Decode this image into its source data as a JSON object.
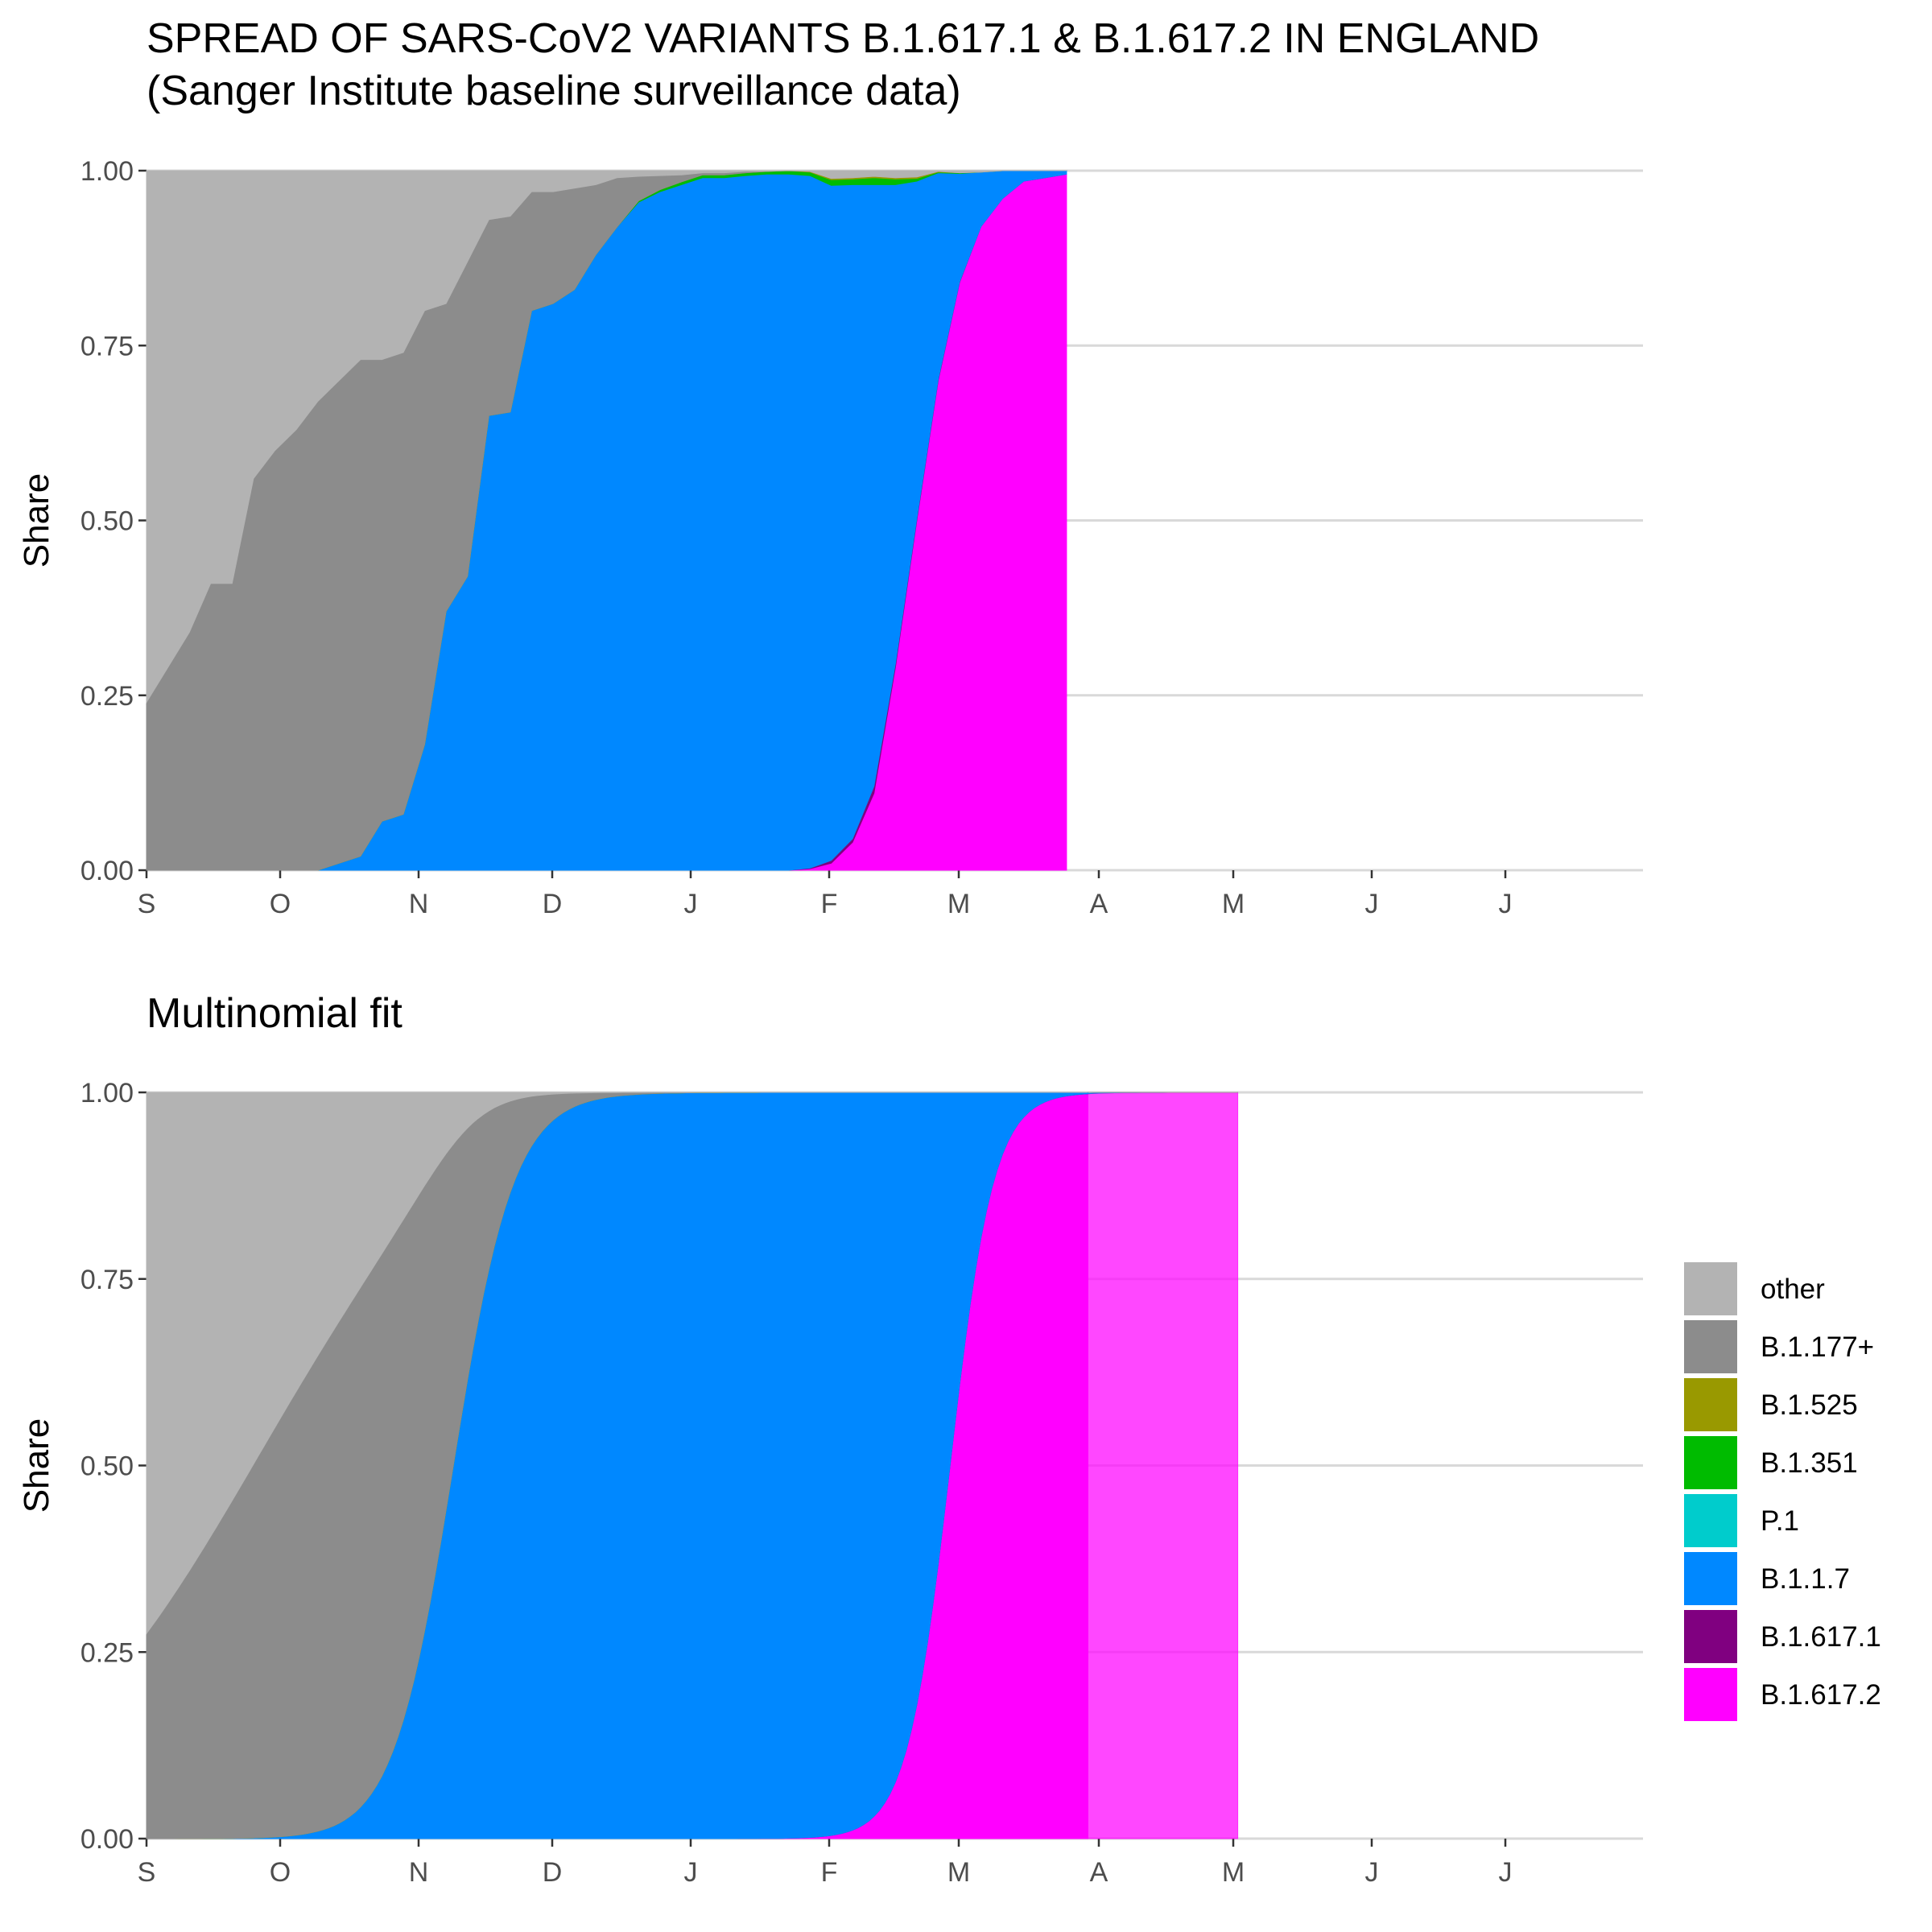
{
  "title_line1": "SPREAD OF SARS-CoV2 VARIANTS B.1.617.1 & B.1.617.2 IN ENGLAND",
  "title_line2": "(Sanger Institute baseline surveillance data)",
  "chart_data": [
    {
      "type": "area",
      "stacked": "fill",
      "subtitle": "",
      "ylabel": "Share",
      "ylim": [
        0,
        1
      ],
      "yticks": [
        "0.00",
        "0.25",
        "0.50",
        "0.75",
        "1.00"
      ],
      "month_ticks": [
        "S",
        "O",
        "N",
        "D",
        "J",
        "F",
        "M",
        "A",
        "M",
        "J",
        "J"
      ],
      "grid": "horizontal",
      "week_index": [
        0,
        1,
        2,
        3,
        4,
        5,
        6,
        7,
        8,
        9,
        10,
        11,
        12,
        13,
        14,
        15,
        16,
        17,
        18,
        19,
        20,
        21,
        22,
        23,
        24,
        25,
        26,
        27,
        28,
        29,
        30,
        31,
        32,
        33,
        34,
        35,
        36,
        37,
        38,
        39,
        40,
        41,
        42,
        43
      ],
      "series": [
        {
          "name": "B.1.617.2",
          "values": [
            0,
            0,
            0,
            0,
            0,
            0,
            0,
            0,
            0,
            0,
            0,
            0,
            0,
            0,
            0,
            0,
            0,
            0,
            0,
            0,
            0,
            0,
            0,
            0,
            0,
            0,
            0,
            0,
            0,
            0,
            0,
            0.002,
            0.01,
            0.04,
            0.11,
            0.29,
            0.5,
            0.7,
            0.84,
            0.92,
            0.96,
            0.985,
            0.99,
            0.995
          ]
        },
        {
          "name": "B.1.617.1",
          "values": [
            0,
            0,
            0,
            0,
            0,
            0,
            0,
            0,
            0,
            0,
            0,
            0,
            0,
            0,
            0,
            0,
            0,
            0,
            0,
            0,
            0,
            0,
            0,
            0,
            0,
            0,
            0,
            0,
            0,
            0,
            0,
            0.001,
            0.004,
            0.005,
            0.01,
            0.005,
            0.003,
            0.002,
            0.001,
            0,
            0,
            0,
            0,
            0
          ]
        },
        {
          "name": "B.1.1.7",
          "values": [
            0,
            0,
            0,
            0,
            0,
            0,
            0,
            0,
            0,
            0.01,
            0.02,
            0.07,
            0.08,
            0.18,
            0.37,
            0.42,
            0.65,
            0.655,
            0.8,
            0.81,
            0.83,
            0.88,
            0.92,
            0.955,
            0.97,
            0.98,
            0.99,
            0.99,
            0.993,
            0.995,
            0.995,
            0.99,
            0.965,
            0.935,
            0.86,
            0.685,
            0.482,
            0.295,
            0.155,
            0.078,
            0.04,
            0.015,
            0.01,
            0.005
          ]
        },
        {
          "name": "P.1",
          "values": [
            0,
            0,
            0,
            0,
            0,
            0,
            0,
            0,
            0,
            0,
            0,
            0,
            0,
            0,
            0,
            0,
            0,
            0,
            0,
            0,
            0,
            0,
            0,
            0,
            0,
            0,
            0,
            0,
            0,
            0,
            0,
            0,
            0,
            0,
            0,
            0,
            0,
            0,
            0,
            0,
            0,
            0,
            0,
            0
          ]
        },
        {
          "name": "B.1.351",
          "values": [
            0,
            0,
            0,
            0,
            0,
            0,
            0,
            0,
            0,
            0,
            0,
            0,
            0,
            0,
            0,
            0,
            0,
            0,
            0,
            0,
            0,
            0,
            0,
            0.002,
            0.003,
            0.004,
            0.004,
            0.004,
            0.004,
            0.004,
            0.005,
            0.005,
            0.008,
            0.008,
            0.01,
            0.008,
            0.004,
            0.001,
            0.001,
            0,
            0,
            0,
            0,
            0
          ]
        },
        {
          "name": "B.1.525",
          "values": [
            0,
            0,
            0,
            0,
            0,
            0,
            0,
            0,
            0,
            0,
            0,
            0,
            0,
            0,
            0,
            0,
            0,
            0,
            0,
            0,
            0,
            0,
            0,
            0,
            0,
            0,
            0,
            0,
            0,
            0,
            0,
            0.001,
            0.002,
            0.002,
            0.002,
            0.002,
            0.002,
            0.001,
            0,
            0,
            0,
            0,
            0,
            0
          ]
        },
        {
          "name": "B.1.177+",
          "values": [
            0.24,
            0.29,
            0.34,
            0.41,
            0.41,
            0.56,
            0.6,
            0.63,
            0.67,
            0.69,
            0.71,
            0.66,
            0.66,
            0.62,
            0.44,
            0.45,
            0.28,
            0.28,
            0.17,
            0.16,
            0.145,
            0.1,
            0.07,
            0.035,
            0.02,
            0.01,
            0.003,
            0.003,
            0.002,
            0,
            0,
            0,
            0,
            0,
            0,
            0,
            0,
            0,
            0,
            0,
            0,
            0,
            0,
            0
          ]
        },
        {
          "name": "other",
          "values": [
            0.76,
            0.71,
            0.66,
            0.59,
            0.59,
            0.44,
            0.4,
            0.37,
            0.33,
            0.3,
            0.27,
            0.27,
            0.26,
            0.2,
            0.19,
            0.13,
            0.07,
            0.065,
            0.03,
            0.03,
            0.025,
            0.02,
            0.01,
            0.008,
            0.007,
            0.006,
            0.003,
            0.003,
            0.001,
            0.001,
            0,
            0.001,
            0.011,
            0.01,
            0.008,
            0.015,
            0.009,
            0.001,
            0.003,
            0.002,
            0,
            0,
            0,
            0
          ]
        }
      ]
    },
    {
      "type": "area",
      "stacked": "fill",
      "subtitle": "Multinomial fit",
      "ylabel": "Share",
      "ylim": [
        0,
        1
      ],
      "yticks": [
        "0.00",
        "0.25",
        "0.50",
        "0.75",
        "1.00"
      ],
      "month_ticks": [
        "S",
        "O",
        "N",
        "D",
        "J",
        "F",
        "M",
        "A",
        "M",
        "J",
        "J"
      ],
      "grid": "horizontal",
      "forecast_shaded": true,
      "model": {
        "week_range": [
          0,
          51
        ],
        "observed_until_week": 44,
        "other": {
          "intercept": 0.97,
          "slope": -0.195
        },
        "B.1.1.7": {
          "intercept": -9.6,
          "slope": 0.68
        },
        "B.1.351": {
          "intercept": -13.6,
          "slope": 0.3
        },
        "B.1.525": {
          "intercept": -14.7,
          "slope": 0.3
        },
        "B.1.617.1": {
          "intercept": -13.2,
          "slope": 0.28
        },
        "B.1.617.2": {
          "intercept": -46.4,
          "slope": 1.66
        }
      }
    }
  ],
  "legend": {
    "items": [
      {
        "label": "other",
        "color": "#b3b3b3"
      },
      {
        "label": "B.1.177+",
        "color": "#8c8c8c"
      },
      {
        "label": "B.1.525",
        "color": "#999900"
      },
      {
        "label": "B.1.351",
        "color": "#00bb00"
      },
      {
        "label": "P.1",
        "color": "#00cccc"
      },
      {
        "label": "B.1.1.7",
        "color": "#0088ff"
      },
      {
        "label": "B.1.617.1",
        "color": "#800080"
      },
      {
        "label": "B.1.617.2",
        "color": "#ff00ff"
      }
    ]
  }
}
